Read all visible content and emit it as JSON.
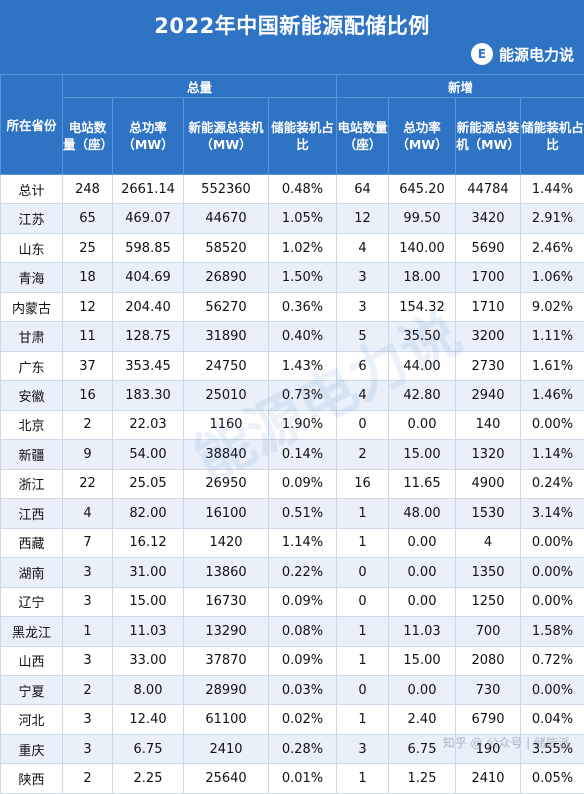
{
  "title": "2022年中国新能源配储比例",
  "brand": {
    "icon": "E",
    "name": "能源电力说"
  },
  "watermark": "能源电力说",
  "footer_mark": "知乎 @ 公众号 | 储能派",
  "headers": {
    "province": "所在省份",
    "group_total": "总量",
    "group_new": "新增",
    "stations": "电站数量（座）",
    "power": "总功率（MW）",
    "capacity_total": "新能源总装机（MW）",
    "ratio": "储能装机占比",
    "stations_new": "电站数量（座）",
    "power_new": "总功率（MW）",
    "capacity_new": "新能源总装机（MW）",
    "ratio_new": "储能装机占比"
  },
  "rows": [
    [
      "总计",
      "248",
      "2661.14",
      "552360",
      "0.48%",
      "64",
      "645.20",
      "44784",
      "1.44%"
    ],
    [
      "江苏",
      "65",
      "469.07",
      "44670",
      "1.05%",
      "12",
      "99.50",
      "3420",
      "2.91%"
    ],
    [
      "山东",
      "25",
      "598.85",
      "58520",
      "1.02%",
      "4",
      "140.00",
      "5690",
      "2.46%"
    ],
    [
      "青海",
      "18",
      "404.69",
      "26890",
      "1.50%",
      "3",
      "18.00",
      "1700",
      "1.06%"
    ],
    [
      "内蒙古",
      "12",
      "204.40",
      "56270",
      "0.36%",
      "3",
      "154.32",
      "1710",
      "9.02%"
    ],
    [
      "甘肃",
      "11",
      "128.75",
      "31890",
      "0.40%",
      "5",
      "35.50",
      "3200",
      "1.11%"
    ],
    [
      "广东",
      "37",
      "353.45",
      "24750",
      "1.43%",
      "6",
      "44.00",
      "2730",
      "1.61%"
    ],
    [
      "安徽",
      "16",
      "183.30",
      "25010",
      "0.73%",
      "4",
      "42.80",
      "2940",
      "1.46%"
    ],
    [
      "北京",
      "2",
      "22.03",
      "1160",
      "1.90%",
      "0",
      "0.00",
      "140",
      "0.00%"
    ],
    [
      "新疆",
      "9",
      "54.00",
      "38840",
      "0.14%",
      "2",
      "15.00",
      "1320",
      "1.14%"
    ],
    [
      "浙江",
      "22",
      "25.05",
      "26950",
      "0.09%",
      "16",
      "11.65",
      "4900",
      "0.24%"
    ],
    [
      "江西",
      "4",
      "82.00",
      "16100",
      "0.51%",
      "1",
      "48.00",
      "1530",
      "3.14%"
    ],
    [
      "西藏",
      "7",
      "16.12",
      "1420",
      "1.14%",
      "1",
      "0.00",
      "4",
      "0.00%"
    ],
    [
      "湖南",
      "3",
      "31.00",
      "13860",
      "0.22%",
      "0",
      "0.00",
      "1350",
      "0.00%"
    ],
    [
      "辽宁",
      "3",
      "15.00",
      "16730",
      "0.09%",
      "0",
      "0.00",
      "1250",
      "0.00%"
    ],
    [
      "黑龙江",
      "1",
      "11.03",
      "13290",
      "0.08%",
      "1",
      "11.03",
      "700",
      "1.58%"
    ],
    [
      "山西",
      "3",
      "33.00",
      "37870",
      "0.09%",
      "1",
      "15.00",
      "2080",
      "0.72%"
    ],
    [
      "宁夏",
      "2",
      "8.00",
      "28990",
      "0.03%",
      "0",
      "0.00",
      "730",
      "0.00%"
    ],
    [
      "河北",
      "3",
      "12.40",
      "61100",
      "0.02%",
      "1",
      "2.40",
      "6790",
      "0.04%"
    ],
    [
      "重庆",
      "3",
      "6.75",
      "2410",
      "0.28%",
      "3",
      "6.75",
      "190",
      "3.55%"
    ],
    [
      "陕西",
      "2",
      "2.25",
      "25640",
      "0.01%",
      "1",
      "1.25",
      "2410",
      "0.05%"
    ]
  ]
}
